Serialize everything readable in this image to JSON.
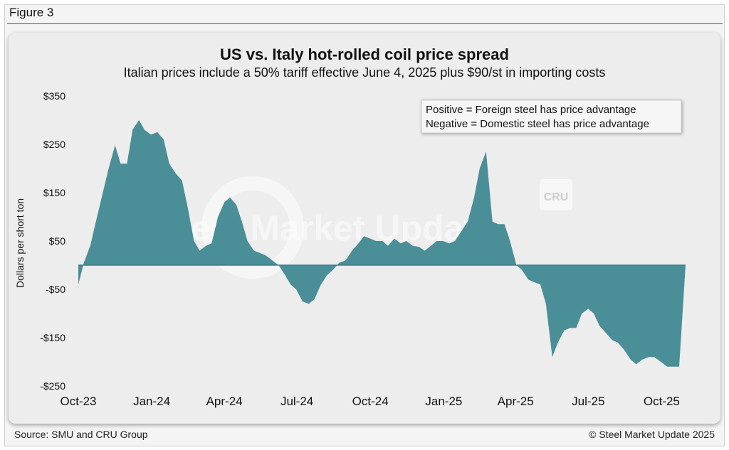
{
  "figure_label": "Figure 3",
  "source": "Source: SMU and CRU Group",
  "copyright": "© Steel Market Update 2025",
  "watermark": {
    "text": "Steel Market Update",
    "badge": "CRU"
  },
  "colors": {
    "area": "#4a8e97",
    "panel": "#ededed",
    "baseline": "#3f7f88"
  },
  "chart_data": {
    "type": "area",
    "title": "US vs. Italy hot-rolled coil price spread",
    "subtitle": "Italian prices include a 50% tariff effective June 4, 2025 plus $90/st in importing costs",
    "ylabel": "Dollars per short ton",
    "xlabel": "",
    "ylim": [
      -250,
      350
    ],
    "yticks": [
      350,
      250,
      150,
      50,
      -50,
      -150,
      -250
    ],
    "ytick_labels": [
      "$350",
      "$250",
      "$150",
      "$50",
      "-$50",
      "-$150",
      "-$250"
    ],
    "xticks": [
      "2023-10",
      "2024-01",
      "2024-04",
      "2024-07",
      "2024-10",
      "2025-01",
      "2025-04",
      "2025-07",
      "2025-10"
    ],
    "xtick_labels": [
      "Oct-23",
      "Jan-24",
      "Apr-24",
      "Jul-24",
      "Oct-24",
      "Jan-25",
      "Apr-25",
      "Jul-25",
      "Oct-25"
    ],
    "grid": false,
    "legend_position": "top-right",
    "annotations": [
      "Positive = Foreign steel has price advantage",
      "Negative = Domestic steel has price advantage"
    ],
    "series": [
      {
        "x": [
          "2023-10-01",
          "2023-10-08",
          "2023-10-16",
          "2023-10-23",
          "2023-10-31",
          "2023-11-08",
          "2023-11-16",
          "2023-11-23",
          "2023-12-01",
          "2023-12-08",
          "2023-12-16",
          "2023-12-23",
          "2023-12-31",
          "2024-01-08",
          "2024-01-16",
          "2024-01-23",
          "2024-01-31",
          "2024-02-08",
          "2024-02-15",
          "2024-02-23",
          "2024-03-01",
          "2024-03-09",
          "2024-03-16",
          "2024-03-24",
          "2024-04-01",
          "2024-04-08",
          "2024-04-16",
          "2024-04-23",
          "2024-04-30",
          "2024-05-08",
          "2024-05-16",
          "2024-05-23",
          "2024-05-31",
          "2024-06-08",
          "2024-06-16",
          "2024-06-23",
          "2024-06-30",
          "2024-07-08",
          "2024-07-16",
          "2024-07-23",
          "2024-07-31",
          "2024-08-08",
          "2024-08-15",
          "2024-08-23",
          "2024-08-31",
          "2024-09-08",
          "2024-09-16",
          "2024-09-23",
          "2024-10-01",
          "2024-10-08",
          "2024-10-16",
          "2024-10-23",
          "2024-10-31",
          "2024-11-08",
          "2024-11-15",
          "2024-11-23",
          "2024-12-01",
          "2024-12-08",
          "2024-12-16",
          "2024-12-23",
          "2024-12-31",
          "2025-01-08",
          "2025-01-15",
          "2025-01-23",
          "2025-01-31",
          "2025-02-08",
          "2025-02-15",
          "2025-02-23",
          "2025-03-03",
          "2025-03-10",
          "2025-03-18",
          "2025-03-25",
          "2025-04-02",
          "2025-04-09",
          "2025-04-17",
          "2025-04-24",
          "2025-05-02",
          "2025-05-09",
          "2025-05-17",
          "2025-05-24",
          "2025-06-01",
          "2025-06-08",
          "2025-06-16",
          "2025-06-23",
          "2025-07-01",
          "2025-07-08",
          "2025-07-15",
          "2025-07-23",
          "2025-07-31",
          "2025-08-07",
          "2025-08-15",
          "2025-08-23",
          "2025-08-30",
          "2025-09-07",
          "2025-09-15",
          "2025-09-22",
          "2025-09-30",
          "2025-10-08",
          "2025-10-15",
          "2025-10-23",
          "2025-10-31"
        ],
        "values": [
          -40,
          5,
          40,
          90,
          145,
          200,
          248,
          210,
          210,
          280,
          300,
          280,
          270,
          275,
          260,
          210,
          190,
          175,
          120,
          50,
          30,
          40,
          45,
          100,
          130,
          140,
          125,
          90,
          50,
          30,
          25,
          20,
          10,
          0,
          -20,
          -40,
          -50,
          -75,
          -80,
          -70,
          -40,
          -20,
          -10,
          5,
          10,
          30,
          45,
          60,
          55,
          50,
          50,
          40,
          55,
          45,
          50,
          40,
          38,
          30,
          40,
          50,
          50,
          45,
          50,
          70,
          90,
          140,
          200,
          235,
          90,
          85,
          85,
          50,
          0,
          -10,
          -30,
          -35,
          -40,
          -80,
          -190,
          -160,
          -135,
          -130,
          -130,
          -100,
          -90,
          -100,
          -125,
          -140,
          -155,
          -160,
          -175,
          -195,
          -205,
          -195,
          -190,
          -190,
          -200,
          -210,
          -210,
          -210,
          0
        ]
      }
    ]
  }
}
